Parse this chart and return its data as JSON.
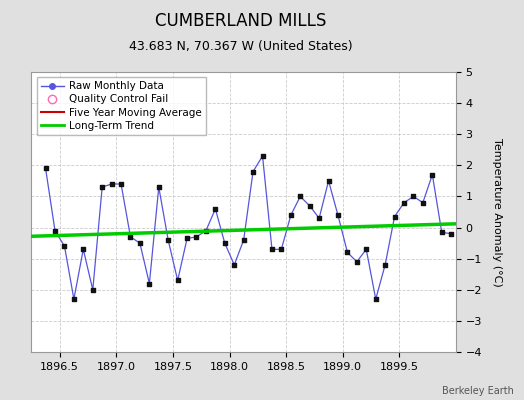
{
  "title": "CUMBERLAND MILLS",
  "subtitle": "43.683 N, 70.367 W (United States)",
  "ylabel": "Temperature Anomaly (°C)",
  "watermark": "Berkeley Earth",
  "xlim": [
    1896.25,
    1900.0
  ],
  "ylim": [
    -4,
    5
  ],
  "xticks": [
    1896.5,
    1897.0,
    1897.5,
    1898.0,
    1898.5,
    1899.0,
    1899.5
  ],
  "yticks": [
    -4,
    -3,
    -2,
    -1,
    0,
    1,
    2,
    3,
    4,
    5
  ],
  "raw_x": [
    1896.375,
    1896.458,
    1896.542,
    1896.625,
    1896.708,
    1896.792,
    1896.875,
    1896.958,
    1897.042,
    1897.125,
    1897.208,
    1897.292,
    1897.375,
    1897.458,
    1897.542,
    1897.625,
    1897.708,
    1897.792,
    1897.875,
    1897.958,
    1898.042,
    1898.125,
    1898.208,
    1898.292,
    1898.375,
    1898.458,
    1898.542,
    1898.625,
    1898.708,
    1898.792,
    1898.875,
    1898.958,
    1899.042,
    1899.125,
    1899.208,
    1899.292,
    1899.375,
    1899.458,
    1899.542,
    1899.625,
    1899.708,
    1899.792,
    1899.875,
    1899.958
  ],
  "raw_y": [
    1.9,
    -0.1,
    -0.6,
    -2.3,
    -0.7,
    -2.0,
    1.3,
    1.4,
    1.4,
    -0.3,
    -0.5,
    -1.8,
    1.3,
    -0.4,
    -1.7,
    -0.35,
    -0.3,
    -0.1,
    0.6,
    -0.5,
    -1.2,
    -0.4,
    1.8,
    2.3,
    -0.7,
    -0.7,
    0.4,
    1.0,
    0.7,
    0.3,
    1.5,
    0.4,
    -0.8,
    -1.1,
    -0.7,
    -2.3,
    -1.2,
    0.35,
    0.8,
    1.0,
    0.8,
    1.7,
    -0.15,
    -0.2
  ],
  "trend_x": [
    1896.25,
    1900.0
  ],
  "trend_y": [
    -0.28,
    0.12
  ],
  "line_color": "#5555dd",
  "marker_color": "#111111",
  "trend_color": "#00cc00",
  "qc_color": "#ff69b4",
  "moving_avg_color": "#cc0000",
  "bg_color": "#e0e0e0",
  "plot_bg_color": "#ffffff",
  "grid_color": "#cccccc",
  "title_fontsize": 12,
  "subtitle_fontsize": 9,
  "label_fontsize": 8,
  "tick_fontsize": 8,
  "legend_fontsize": 7.5
}
